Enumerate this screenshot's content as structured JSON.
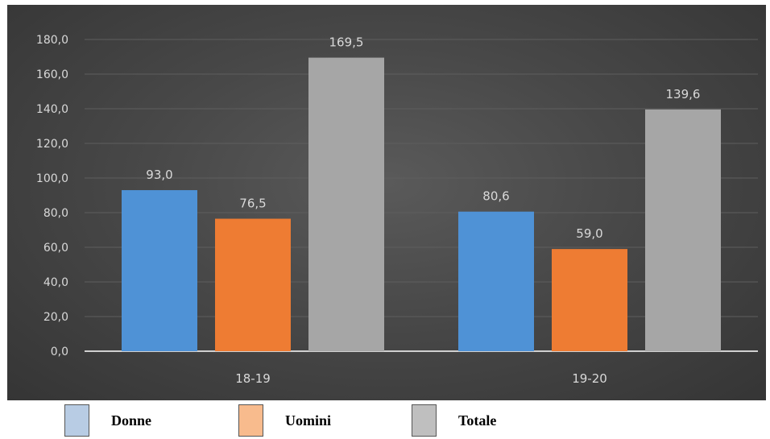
{
  "chart_data": {
    "type": "bar",
    "categories": [
      "18-19",
      "19-20"
    ],
    "series": [
      {
        "name": "Donne",
        "values": [
          93.0,
          80.6
        ],
        "color": "#4f92d6"
      },
      {
        "name": "Uomini",
        "values": [
          76.5,
          59.0
        ],
        "color": "#ee7c33"
      },
      {
        "name": "Totale",
        "values": [
          169.5,
          139.6
        ],
        "color": "#a6a6a6"
      }
    ],
    "value_labels": [
      [
        "93,0",
        "80,6"
      ],
      [
        "76,5",
        "59,0"
      ],
      [
        "169,5",
        "139,6"
      ]
    ],
    "yticks": [
      "0,0",
      "20,0",
      "40,0",
      "60,0",
      "80,0",
      "100,0",
      "120,0",
      "140,0",
      "160,0",
      "180,0"
    ],
    "ylim": [
      0,
      180
    ],
    "grid": true,
    "legend_placement": "bottom",
    "title": "",
    "xlabel": "",
    "ylabel": ""
  },
  "legend": {
    "items": [
      {
        "label": "Donne",
        "color": "#b8cce4"
      },
      {
        "label": "Uomini",
        "color": "#f8bb8d"
      },
      {
        "label": "Totale",
        "color": "#bfbfbf"
      }
    ]
  }
}
